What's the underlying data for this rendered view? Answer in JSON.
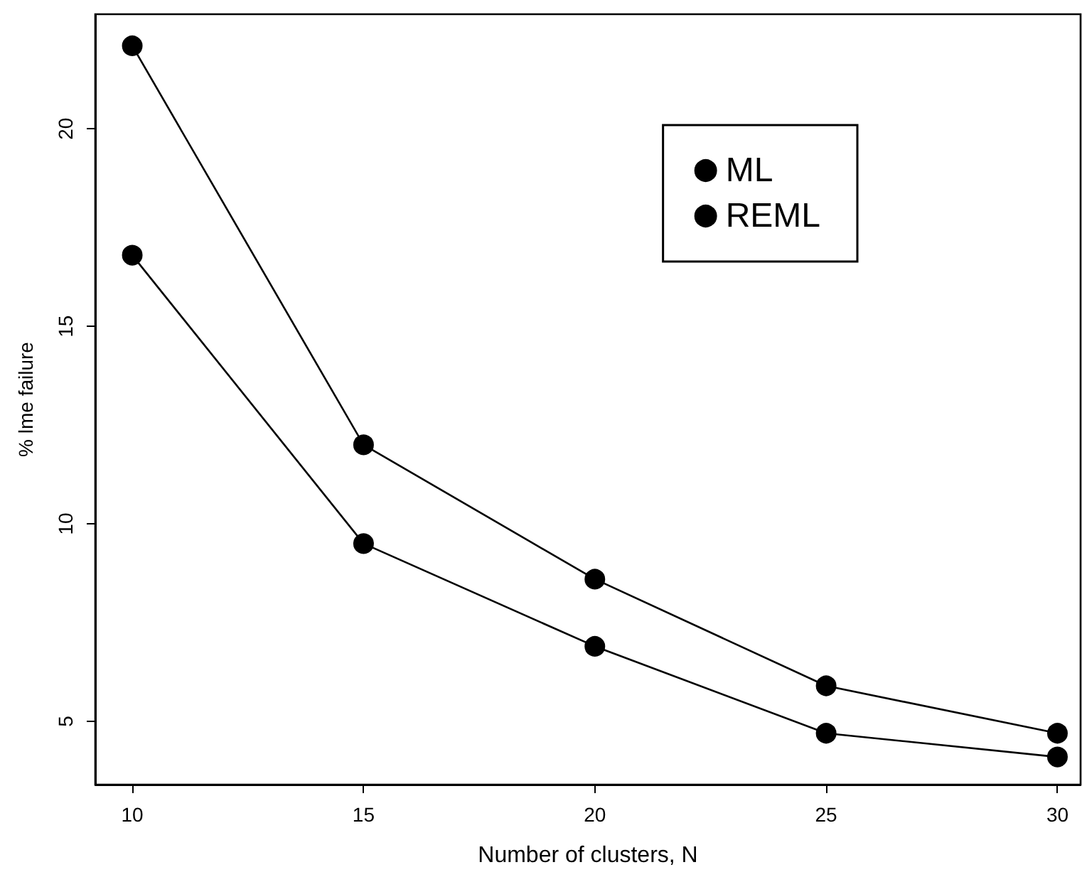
{
  "chart_data": {
    "type": "line",
    "xlabel": "Number of clusters, N",
    "ylabel": "% lme failure",
    "x": [
      10,
      15,
      20,
      25,
      30
    ],
    "series": [
      {
        "name": "ML",
        "color": "#000000",
        "values": [
          22.1,
          12.0,
          8.6,
          5.9,
          4.7
        ]
      },
      {
        "name": "REML",
        "color": "#000000",
        "values": [
          16.8,
          9.5,
          6.9,
          4.7,
          4.1
        ]
      }
    ],
    "xlim": [
      9.2,
      30.5
    ],
    "xticks": [
      10,
      15,
      20,
      25,
      30
    ],
    "ylim": [
      3.4,
      22.9
    ],
    "yticks": [
      5,
      10,
      15,
      20
    ],
    "grid": false,
    "legend": "top right",
    "marker": "circle",
    "line_style": "solid"
  }
}
